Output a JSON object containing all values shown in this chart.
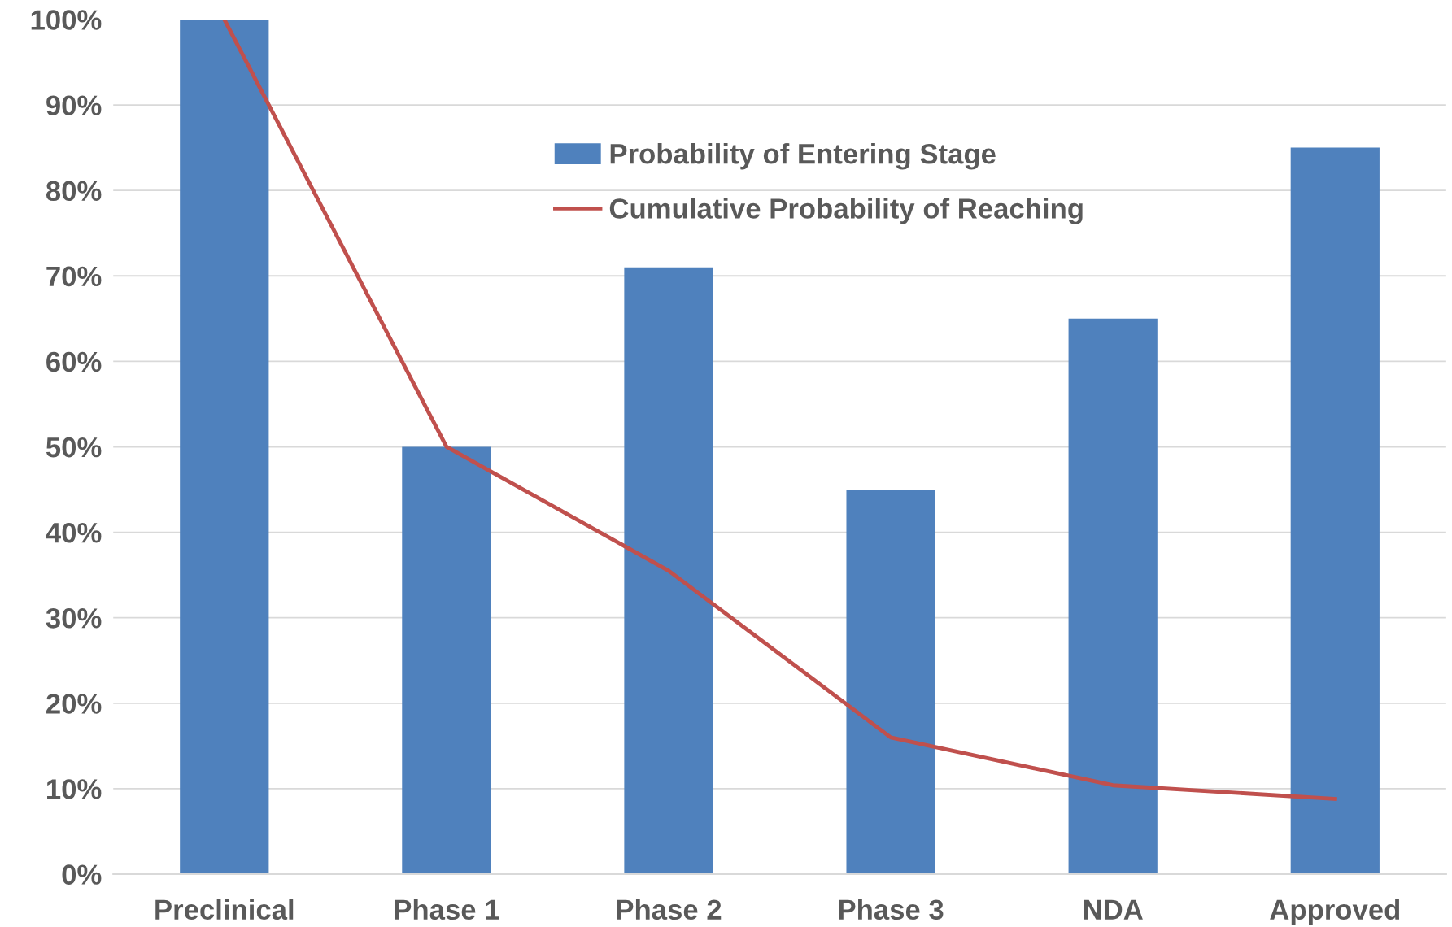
{
  "chart_data": {
    "type": "bar",
    "categories": [
      "Preclinical",
      "Phase 1",
      "Phase 2",
      "Phase 3",
      "NDA",
      "Approved"
    ],
    "series": [
      {
        "name": "Probability of Entering Stage",
        "color": "#4f81bd",
        "values": [
          100,
          50,
          71,
          45,
          65,
          85
        ]
      },
      {
        "name": "Cumulative Probability of Reaching",
        "type": "line",
        "color": "#c0504d",
        "values": [
          100,
          50,
          35.5,
          16,
          10.4,
          8.8
        ]
      }
    ],
    "ylim": [
      0,
      100
    ],
    "yticks": [
      {
        "value": 0,
        "label": "0%"
      },
      {
        "value": 10,
        "label": "10%"
      },
      {
        "value": 20,
        "label": "20%"
      },
      {
        "value": 30,
        "label": "30%"
      },
      {
        "value": 40,
        "label": "40%"
      },
      {
        "value": 50,
        "label": "50%"
      },
      {
        "value": 60,
        "label": "60%"
      },
      {
        "value": 70,
        "label": "70%"
      },
      {
        "value": 80,
        "label": "80%"
      },
      {
        "value": 90,
        "label": "90%"
      },
      {
        "value": 100,
        "label": "100%"
      }
    ],
    "grid": "y",
    "legend": "top",
    "marker": "none",
    "line_style": "solid"
  }
}
